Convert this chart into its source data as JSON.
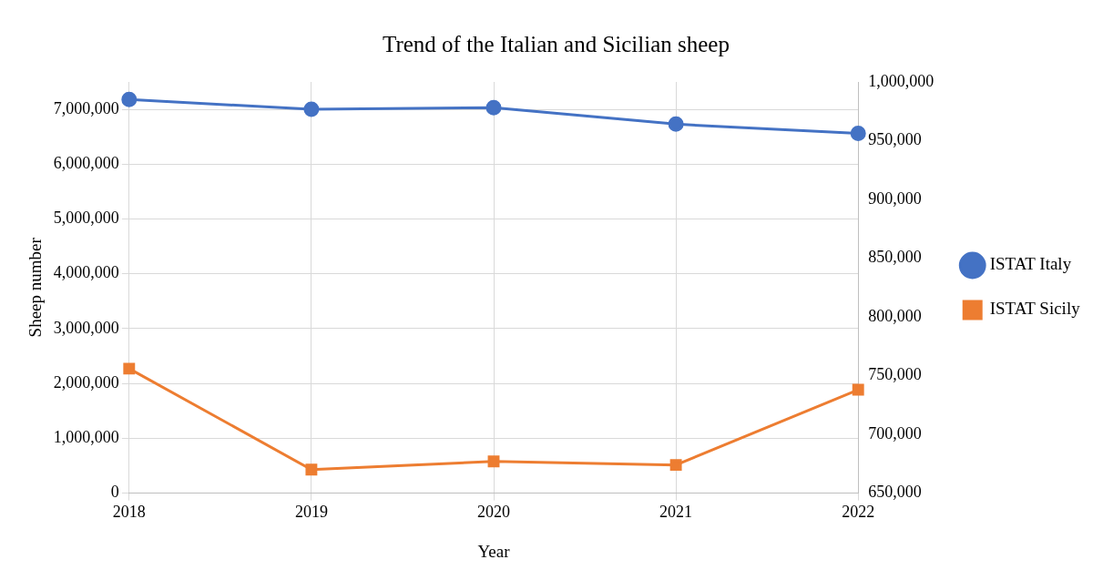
{
  "chart_data": {
    "type": "line",
    "title": "Trend of the Italian and Sicilian sheep",
    "xlabel": "Year",
    "ylabel": "Sheep number",
    "categories": [
      "2018",
      "2019",
      "2020",
      "2021",
      "2022"
    ],
    "series": [
      {
        "name": "ISTAT Italy",
        "color": "#4472c4",
        "values": [
          7180000,
          7000000,
          7030000,
          6730000,
          6560000
        ]
      },
      {
        "name": "ISTAT Sicily",
        "color": "#ed7d31",
        "axis": "y2",
        "marker": "square",
        "values": [
          756000,
          670000,
          677000,
          674000,
          738000
        ]
      }
    ],
    "ylim": [
      0,
      7500000
    ],
    "yticks": [
      0,
      {
        "value": 1000000,
        "label": "1,000,000"
      },
      {
        "value": 2000000,
        "label": "2,000,000"
      },
      {
        "value": 3000000,
        "label": "3,000,000"
      },
      {
        "value": 4000000,
        "label": "4,000,000"
      },
      {
        "value": 5000000,
        "label": "5,000,000"
      },
      {
        "value": 6000000,
        "label": "6,000,000"
      },
      {
        "value": 7000000,
        "label": "7,000,000"
      }
    ],
    "y2lim": [
      650000,
      1000000
    ],
    "y2ticks": [
      {
        "value": 650000,
        "label": "650,000"
      },
      {
        "value": 700000,
        "label": "700,000"
      },
      {
        "value": 750000,
        "label": "750,000"
      },
      {
        "value": 800000,
        "label": "800,000"
      },
      {
        "value": 850000,
        "label": "850,000"
      },
      {
        "value": 900000,
        "label": "900,000"
      },
      {
        "value": 950000,
        "label": "950,000"
      },
      {
        "value": 1000000,
        "label": "1,000,000"
      }
    ],
    "grid": true,
    "legend": "right",
    "marker": "circle",
    "line_style": "solid"
  }
}
